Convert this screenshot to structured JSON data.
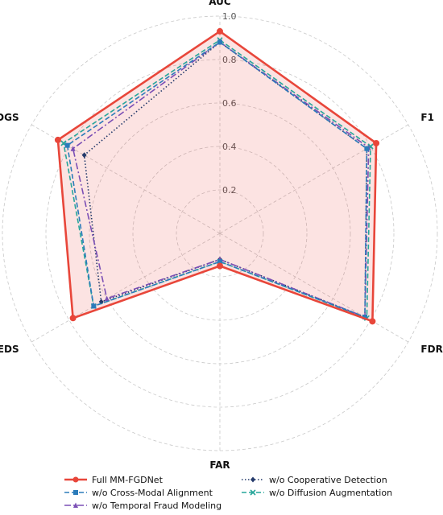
{
  "chart_data": {
    "type": "radar",
    "axes": [
      "AUC",
      "F1",
      "FDR",
      "FAR",
      "EDS",
      "CDGS"
    ],
    "range": [
      0,
      1.0
    ],
    "ticks": [
      "0.2",
      "0.4",
      "0.6",
      "0.8",
      "1.0"
    ],
    "tick_values": [
      0.2,
      0.4,
      0.6,
      0.8,
      1.0
    ],
    "grid": true,
    "legend_position": "bottom",
    "series": [
      {
        "name": "Full MM-FGDNet",
        "values": [
          0.93,
          0.83,
          0.81,
          0.15,
          0.78,
          0.86
        ],
        "color": "#e8463a",
        "dash": "solid",
        "marker": "circle",
        "fill": true
      },
      {
        "name": "w/o Cross-Modal Alignment",
        "values": [
          0.88,
          0.78,
          0.77,
          0.13,
          0.67,
          0.81
        ],
        "color": "#2b7bba",
        "dash": "dashed",
        "marker": "square",
        "fill": false
      },
      {
        "name": "w/o Temporal Fraud Modeling",
        "values": [
          0.88,
          0.79,
          0.77,
          0.12,
          0.6,
          0.78
        ],
        "color": "#7b4fb5",
        "dash": "dashdot",
        "marker": "triangle",
        "fill": false
      },
      {
        "name": "w/o Cooperative Detection",
        "values": [
          0.88,
          0.78,
          0.77,
          0.12,
          0.63,
          0.72
        ],
        "color": "#243a6b",
        "dash": "dotted",
        "marker": "diamond",
        "fill": false
      },
      {
        "name": "w/o Diffusion Augmentation",
        "values": [
          0.89,
          0.8,
          0.78,
          0.13,
          0.67,
          0.83
        ],
        "color": "#26a69a",
        "dash": "dashed",
        "marker": "x",
        "fill": false
      }
    ]
  }
}
